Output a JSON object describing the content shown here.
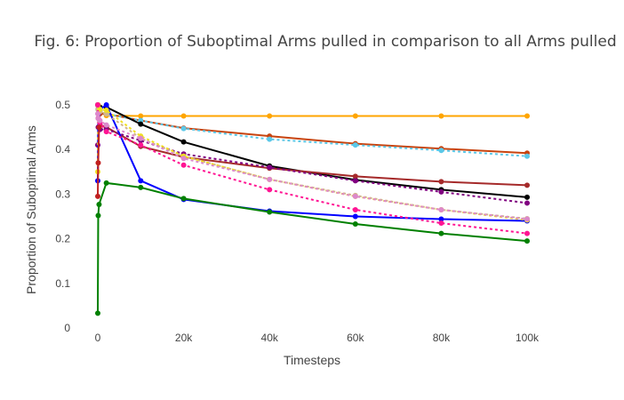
{
  "chart_data": {
    "type": "line",
    "title": "Fig. 6: Proportion of Suboptimal Arms pulled in comparison to all Arms pulled",
    "xlabel": "Timesteps",
    "ylabel": "Proportion of Suboptimal Arms",
    "xlim": [
      -3000,
      100000
    ],
    "ylim": [
      0,
      0.5
    ],
    "x_ticks": [
      0,
      20000,
      40000,
      60000,
      80000,
      100000
    ],
    "x_tick_labels": [
      "0",
      "20k",
      "40k",
      "60k",
      "80k",
      "100k"
    ],
    "y_ticks": [
      0,
      0.1,
      0.2,
      0.3,
      0.4,
      0.5
    ],
    "y_tick_labels": [
      "0",
      "0.1",
      "0.2",
      "0.3",
      "0.4",
      "0.5"
    ],
    "grid": false,
    "legend": "none",
    "series": [
      {
        "color": "#ffa500",
        "dash": "solid",
        "points": [
          [
            0,
            0.5
          ],
          [
            100,
            0.49
          ],
          [
            500,
            0.485
          ],
          [
            2000,
            0.476
          ],
          [
            10000,
            0.475
          ],
          [
            20000,
            0.475
          ],
          [
            40000,
            0.475
          ],
          [
            60000,
            0.475
          ],
          [
            80000,
            0.475
          ],
          [
            100000,
            0.475
          ]
        ]
      },
      {
        "color": "#c8440f",
        "dash": "solid",
        "points": [
          [
            0,
            0.5
          ],
          [
            100,
            0.49
          ],
          [
            500,
            0.48
          ],
          [
            2000,
            0.48
          ],
          [
            10000,
            0.465
          ],
          [
            20000,
            0.448
          ],
          [
            40000,
            0.43
          ],
          [
            60000,
            0.413
          ],
          [
            80000,
            0.402
          ],
          [
            100000,
            0.392
          ]
        ]
      },
      {
        "color": "#5bc8e8",
        "dash": "dot",
        "points": [
          [
            0,
            0.5
          ],
          [
            100,
            0.49
          ],
          [
            500,
            0.485
          ],
          [
            2000,
            0.48
          ],
          [
            10000,
            0.465
          ],
          [
            20000,
            0.447
          ],
          [
            40000,
            0.423
          ],
          [
            60000,
            0.41
          ],
          [
            80000,
            0.398
          ],
          [
            100000,
            0.385
          ]
        ]
      },
      {
        "color": "#000000",
        "dash": "solid",
        "points": [
          [
            0,
            0.5
          ],
          [
            100,
            0.49
          ],
          [
            500,
            0.495
          ],
          [
            2000,
            0.495
          ],
          [
            10000,
            0.457
          ],
          [
            20000,
            0.417
          ],
          [
            40000,
            0.363
          ],
          [
            60000,
            0.332
          ],
          [
            80000,
            0.31
          ],
          [
            100000,
            0.293
          ]
        ]
      },
      {
        "color": "#a52a2a",
        "dash": "solid",
        "points": [
          [
            0,
            0.5
          ],
          [
            100,
            0.47
          ],
          [
            500,
            0.455
          ],
          [
            2000,
            0.45
          ],
          [
            10000,
            0.407
          ],
          [
            20000,
            0.383
          ],
          [
            40000,
            0.358
          ],
          [
            60000,
            0.34
          ],
          [
            80000,
            0.328
          ],
          [
            100000,
            0.32
          ]
        ]
      },
      {
        "color": "#800080",
        "dash": "dot",
        "points": [
          [
            0,
            0.41
          ],
          [
            100,
            0.45
          ],
          [
            500,
            0.445
          ],
          [
            2000,
            0.445
          ],
          [
            10000,
            0.42
          ],
          [
            20000,
            0.39
          ],
          [
            40000,
            0.36
          ],
          [
            60000,
            0.33
          ],
          [
            80000,
            0.305
          ],
          [
            100000,
            0.28
          ]
        ]
      },
      {
        "color": "#0000ff",
        "dash": "solid",
        "points": [
          [
            0,
            0.33
          ],
          [
            100,
            0.48
          ],
          [
            500,
            0.49
          ],
          [
            2000,
            0.5
          ],
          [
            10000,
            0.33
          ],
          [
            20000,
            0.288
          ],
          [
            40000,
            0.262
          ],
          [
            60000,
            0.25
          ],
          [
            80000,
            0.244
          ],
          [
            100000,
            0.24
          ]
        ]
      },
      {
        "color": "#d2b48c",
        "dash": "dot",
        "points": [
          [
            0,
            0.5
          ],
          [
            100,
            0.49
          ],
          [
            500,
            0.485
          ],
          [
            2000,
            0.48
          ],
          [
            10000,
            0.425
          ],
          [
            20000,
            0.385
          ],
          [
            40000,
            0.333
          ],
          [
            60000,
            0.297
          ],
          [
            80000,
            0.265
          ],
          [
            100000,
            0.245
          ]
        ]
      },
      {
        "color": "#f0e020",
        "dash": "dot",
        "points": [
          [
            0,
            0.35
          ],
          [
            100,
            0.5
          ],
          [
            500,
            0.49
          ],
          [
            2000,
            0.488
          ],
          [
            10000,
            0.43
          ],
          [
            20000,
            0.385
          ],
          [
            40000,
            0.333
          ],
          [
            60000,
            0.295
          ],
          [
            80000,
            0.265
          ],
          [
            100000,
            0.242
          ]
        ]
      },
      {
        "color": "#ff1493",
        "dash": "dot",
        "points": [
          [
            0,
            0.5
          ],
          [
            100,
            0.47
          ],
          [
            500,
            0.46
          ],
          [
            2000,
            0.44
          ],
          [
            10000,
            0.41
          ],
          [
            20000,
            0.365
          ],
          [
            40000,
            0.31
          ],
          [
            60000,
            0.265
          ],
          [
            80000,
            0.235
          ],
          [
            100000,
            0.212
          ]
        ]
      },
      {
        "color": "#dd88cc",
        "dash": "dot",
        "points": [
          [
            0,
            0.48
          ],
          [
            100,
            0.47
          ],
          [
            500,
            0.465
          ],
          [
            2000,
            0.455
          ],
          [
            10000,
            0.425
          ],
          [
            20000,
            0.38
          ],
          [
            40000,
            0.333
          ],
          [
            60000,
            0.295
          ],
          [
            80000,
            0.265
          ],
          [
            100000,
            0.244
          ]
        ]
      },
      {
        "color": "#c02020",
        "dash": "solid",
        "points": [
          [
            0,
            0.295
          ],
          [
            100,
            0.37
          ],
          [
            300,
            0.45
          ]
        ]
      },
      {
        "color": "#008000",
        "dash": "solid",
        "points": [
          [
            0,
            0.033
          ],
          [
            100,
            0.252
          ],
          [
            300,
            0.277
          ],
          [
            2000,
            0.325
          ],
          [
            10000,
            0.315
          ],
          [
            20000,
            0.29
          ],
          [
            40000,
            0.26
          ],
          [
            60000,
            0.233
          ],
          [
            80000,
            0.212
          ],
          [
            100000,
            0.195
          ]
        ]
      }
    ]
  }
}
